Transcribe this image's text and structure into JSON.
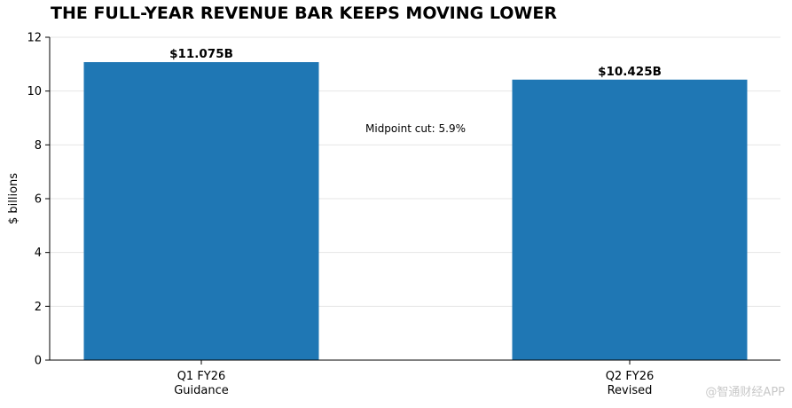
{
  "chart_data": {
    "type": "bar",
    "title": "THE FULL-YEAR REVENUE BAR KEEPS MOVING LOWER",
    "ylabel": "$ billions",
    "xlabel": "",
    "categories": [
      [
        "Q1 FY26",
        "Guidance"
      ],
      [
        "Q2 FY26",
        "Revised"
      ]
    ],
    "values": [
      11.075,
      10.425
    ],
    "value_labels": [
      "$11.075B",
      "$10.425B"
    ],
    "ylim": [
      0,
      12
    ],
    "yticks": [
      0,
      2,
      4,
      6,
      8,
      10,
      12
    ],
    "annotation": "Midpoint cut: 5.9%",
    "grid": "horizontal",
    "bar_color": "#1f77b4"
  },
  "watermark": "@智通财经APP"
}
